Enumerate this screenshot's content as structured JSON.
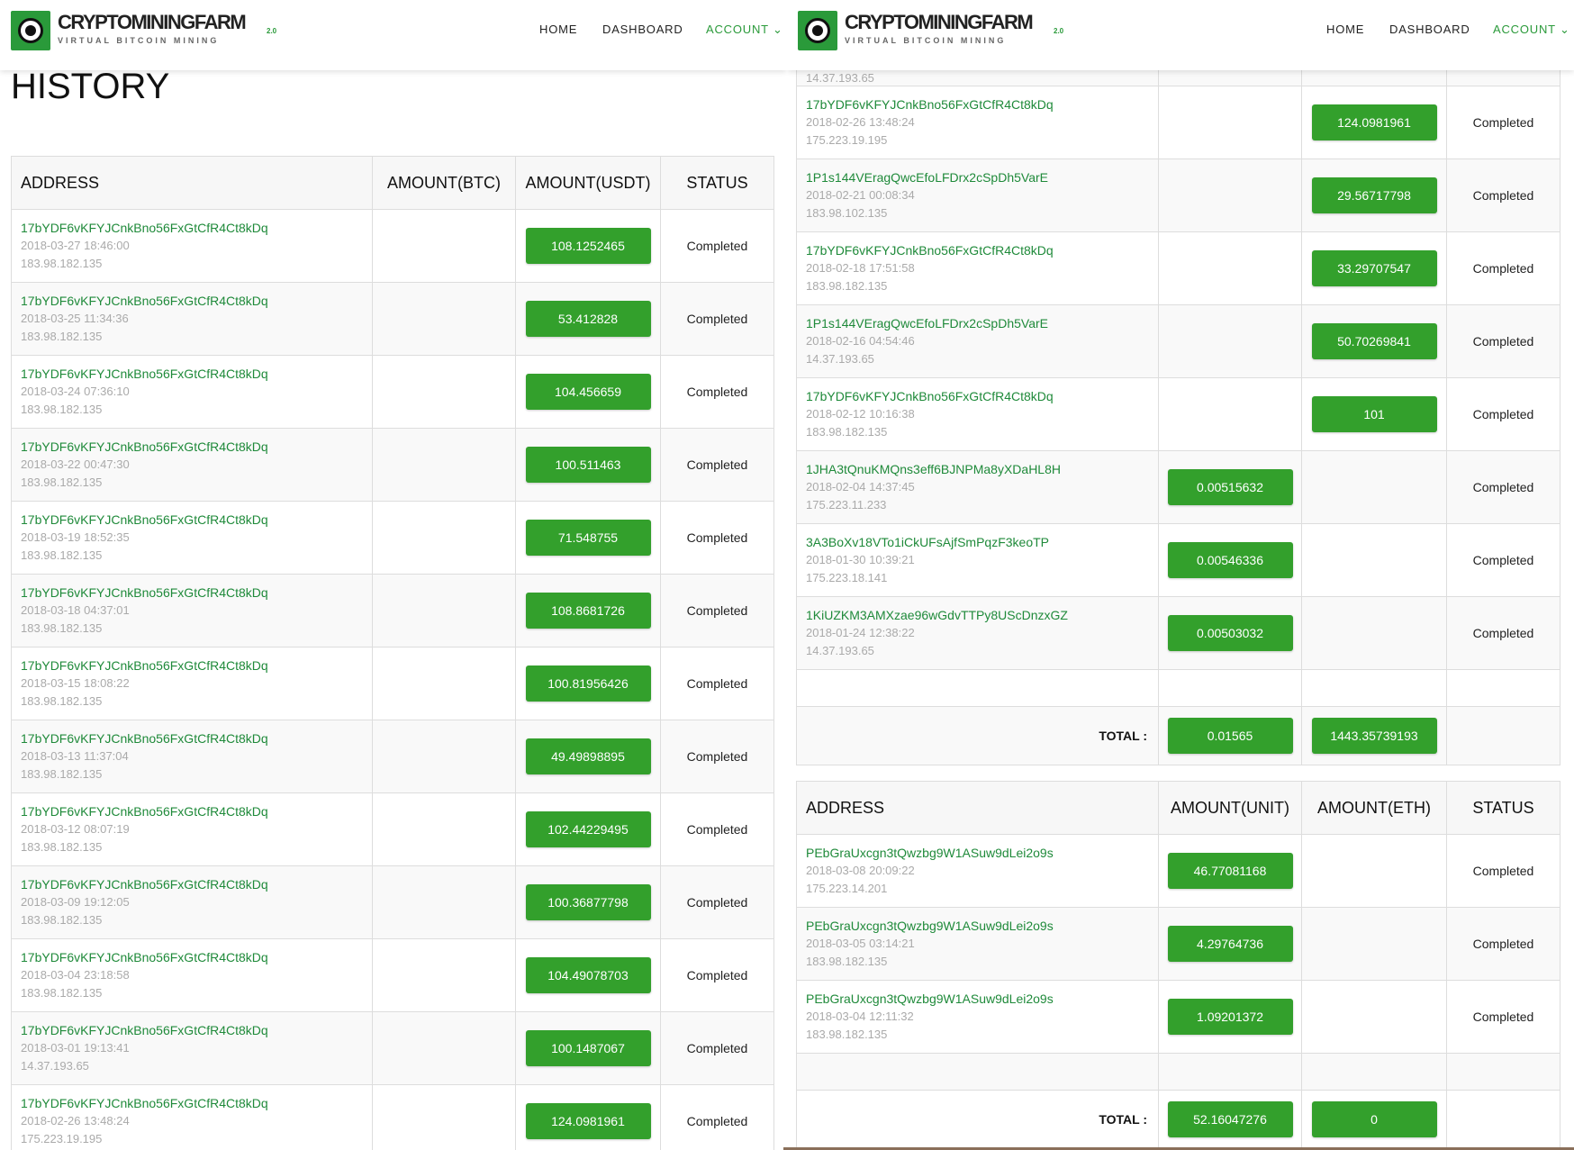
{
  "header": {
    "brand": "CRYPTOMININGFARM",
    "brand_version": "2.0",
    "tagline": "VIRTUAL BITCOIN MINING",
    "nav": [
      {
        "label": "HOME"
      },
      {
        "label": "DASHBOARD"
      },
      {
        "label": "ACCOUNT ⌄"
      }
    ]
  },
  "page_title": "HISTORY",
  "colors": {
    "accent": "#33a02c",
    "link": "#1f8a3a"
  },
  "btc_table": {
    "columns": [
      "ADDRESS",
      "AMOUNT(BTC)",
      "AMOUNT(USDT)",
      "STATUS"
    ],
    "rows": [
      {
        "address": "17bYDF6vKFYJCnkBno56FxGtCfR4Ct8kDq",
        "date": "2018-03-27 18:46:00",
        "ip": "183.98.182.135",
        "btc": "",
        "usdt": "108.1252465",
        "status": "Completed"
      },
      {
        "address": "17bYDF6vKFYJCnkBno56FxGtCfR4Ct8kDq",
        "date": "2018-03-25 11:34:36",
        "ip": "183.98.182.135",
        "btc": "",
        "usdt": "53.412828",
        "status": "Completed"
      },
      {
        "address": "17bYDF6vKFYJCnkBno56FxGtCfR4Ct8kDq",
        "date": "2018-03-24 07:36:10",
        "ip": "183.98.182.135",
        "btc": "",
        "usdt": "104.456659",
        "status": "Completed"
      },
      {
        "address": "17bYDF6vKFYJCnkBno56FxGtCfR4Ct8kDq",
        "date": "2018-03-22 00:47:30",
        "ip": "183.98.182.135",
        "btc": "",
        "usdt": "100.511463",
        "status": "Completed"
      },
      {
        "address": "17bYDF6vKFYJCnkBno56FxGtCfR4Ct8kDq",
        "date": "2018-03-19 18:52:35",
        "ip": "183.98.182.135",
        "btc": "",
        "usdt": "71.548755",
        "status": "Completed"
      },
      {
        "address": "17bYDF6vKFYJCnkBno56FxGtCfR4Ct8kDq",
        "date": "2018-03-18 04:37:01",
        "ip": "183.98.182.135",
        "btc": "",
        "usdt": "108.8681726",
        "status": "Completed"
      },
      {
        "address": "17bYDF6vKFYJCnkBno56FxGtCfR4Ct8kDq",
        "date": "2018-03-15 18:08:22",
        "ip": "183.98.182.135",
        "btc": "",
        "usdt": "100.81956426",
        "status": "Completed"
      },
      {
        "address": "17bYDF6vKFYJCnkBno56FxGtCfR4Ct8kDq",
        "date": "2018-03-13 11:37:04",
        "ip": "183.98.182.135",
        "btc": "",
        "usdt": "49.49898895",
        "status": "Completed"
      },
      {
        "address": "17bYDF6vKFYJCnkBno56FxGtCfR4Ct8kDq",
        "date": "2018-03-12 08:07:19",
        "ip": "183.98.182.135",
        "btc": "",
        "usdt": "102.44229495",
        "status": "Completed"
      },
      {
        "address": "17bYDF6vKFYJCnkBno56FxGtCfR4Ct8kDq",
        "date": "2018-03-09 19:12:05",
        "ip": "183.98.182.135",
        "btc": "",
        "usdt": "100.36877798",
        "status": "Completed"
      },
      {
        "address": "17bYDF6vKFYJCnkBno56FxGtCfR4Ct8kDq",
        "date": "2018-03-04 23:18:58",
        "ip": "183.98.182.135",
        "btc": "",
        "usdt": "104.49078703",
        "status": "Completed"
      },
      {
        "address": "17bYDF6vKFYJCnkBno56FxGtCfR4Ct8kDq",
        "date": "2018-03-01 19:13:41",
        "ip": "14.37.193.65",
        "btc": "",
        "usdt": "100.1487067",
        "status": "Completed"
      },
      {
        "address": "17bYDF6vKFYJCnkBno56FxGtCfR4Ct8kDq",
        "date": "2018-02-26 13:48:24",
        "ip": "175.223.19.195",
        "btc": "",
        "usdt": "124.0981961",
        "status": "Completed"
      },
      {
        "address": "1P1s144VEragQwcEfoLFDrx2cSpDh5VarE",
        "date": "2018-02-21 00:08:34",
        "ip": "183.98.102.135",
        "btc": "",
        "usdt": "29.56717798",
        "status": "Completed"
      },
      {
        "address": "17bYDF6vKFYJCnkBno56FxGtCfR4Ct8kDq",
        "date": "2018-02-18 17:51:58",
        "ip": "183.98.182.135",
        "btc": "",
        "usdt": "33.29707547",
        "status": "Completed"
      },
      {
        "address": "1P1s144VEragQwcEfoLFDrx2cSpDh5VarE",
        "date": "2018-02-16 04:54:46",
        "ip": "14.37.193.65",
        "btc": "",
        "usdt": "50.70269841",
        "status": "Completed"
      },
      {
        "address": "17bYDF6vKFYJCnkBno56FxGtCfR4Ct8kDq",
        "date": "2018-02-12 10:16:38",
        "ip": "183.98.182.135",
        "btc": "",
        "usdt": "101",
        "status": "Completed"
      },
      {
        "address": "1JHA3tQnuKMQns3eff6BJNPMa8yXDaHL8H",
        "date": "2018-02-04 14:37:45",
        "ip": "175.223.11.233",
        "btc": "0.00515632",
        "usdt": "",
        "status": "Completed"
      },
      {
        "address": "3A3BoXv18VTo1iCkUFsAjfSmPqzF3keoTP",
        "date": "2018-01-30 10:39:21",
        "ip": "175.223.18.141",
        "btc": "0.00546336",
        "usdt": "",
        "status": "Completed"
      },
      {
        "address": "1KiUZKM3AMXzae96wGdvTTPy8UScDnzxGZ",
        "date": "2018-01-24 12:38:22",
        "ip": "14.37.193.65",
        "btc": "0.00503032",
        "usdt": "",
        "status": "Completed"
      }
    ],
    "total_label": "TOTAL :",
    "total_btc": "0.01565",
    "total_usdt": "1443.35739193"
  },
  "unit_table": {
    "columns": [
      "ADDRESS",
      "AMOUNT(UNIT)",
      "AMOUNT(ETH)",
      "STATUS"
    ],
    "rows": [
      {
        "address": "PEbGraUxcgn3tQwzbg9W1ASuw9dLei2o9s",
        "date": "2018-03-08 20:09:22",
        "ip": "175.223.14.201",
        "unit": "46.77081168",
        "eth": "",
        "status": "Completed"
      },
      {
        "address": "PEbGraUxcgn3tQwzbg9W1ASuw9dLei2o9s",
        "date": "2018-03-05 03:14:21",
        "ip": "183.98.182.135",
        "unit": "4.29764736",
        "eth": "",
        "status": "Completed"
      },
      {
        "address": "PEbGraUxcgn3tQwzbg9W1ASuw9dLei2o9s",
        "date": "2018-03-04 12:11:32",
        "ip": "183.98.182.135",
        "unit": "1.09201372",
        "eth": "",
        "status": "Completed"
      }
    ],
    "total_label": "TOTAL :",
    "total_unit": "52.16047276",
    "total_eth": "0"
  }
}
